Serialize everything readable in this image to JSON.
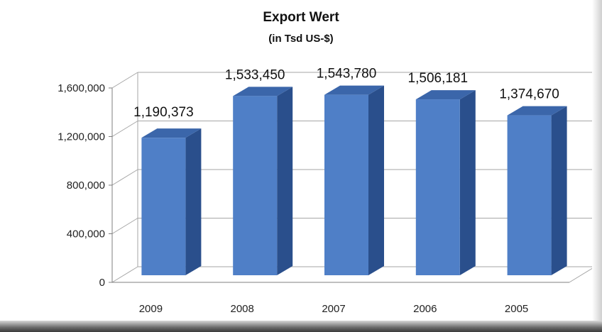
{
  "chart_data": {
    "type": "bar",
    "title": "Export Wert",
    "subtitle": "(in Tsd US-$)",
    "categories": [
      "2009",
      "2008",
      "2007",
      "2006",
      "2005"
    ],
    "values": [
      1190373,
      1533450,
      1543780,
      1506181,
      1374670
    ],
    "data_labels": [
      "1,190,373",
      "1,533,450",
      "1,543,780",
      "1,506,181",
      "1,374,670"
    ],
    "y_ticks": [
      0,
      400000,
      800000,
      1200000,
      1600000
    ],
    "y_tick_labels": [
      "0",
      "400,000",
      "800,000",
      "1,200,000",
      "1,600,000"
    ],
    "ylim": [
      0,
      1600000
    ],
    "xlabel": "",
    "ylabel": "",
    "grid": true,
    "style": "3d-column",
    "colors": {
      "bar_front": "#4f7fc7",
      "bar_side": "#2a4f8c",
      "bar_top": "#3b66aa",
      "grid": "#a6a6a6",
      "axis": "#7f7f7f"
    }
  }
}
